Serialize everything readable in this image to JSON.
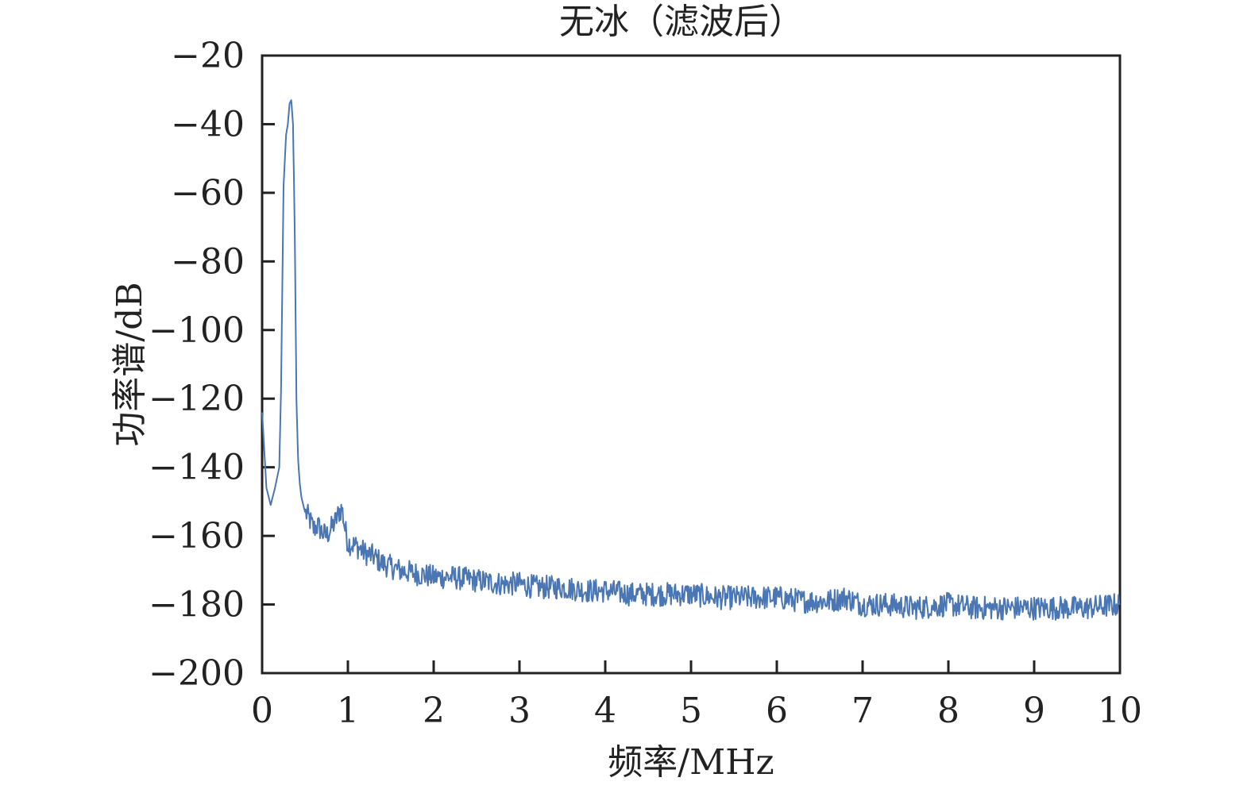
{
  "chart_data": {
    "type": "line",
    "title": "无冰（滤波后）",
    "xlabel": "频率/MHz",
    "ylabel": "功率谱/dB",
    "xlim": [
      0,
      10
    ],
    "ylim": [
      -200,
      -20
    ],
    "xticks": [
      "0",
      "1",
      "2",
      "3",
      "4",
      "5",
      "6",
      "7",
      "8",
      "9",
      "10"
    ],
    "yticks": [
      "−20",
      "−40",
      "−60",
      "−80",
      "−100",
      "−120",
      "−140",
      "−160",
      "−180",
      "−200"
    ],
    "grid": false,
    "line_color": "#4a76b4",
    "series": [
      {
        "x": [
          0,
          0.05,
          0.1,
          0.15,
          0.2,
          0.22,
          0.25,
          0.28,
          0.3,
          0.32,
          0.34,
          0.36,
          0.38,
          0.4,
          0.42,
          0.44,
          0.46,
          0.5,
          0.55,
          0.6,
          0.65,
          0.7,
          0.75,
          0.8,
          0.85,
          0.9,
          0.93,
          0.96,
          1.0,
          1.1,
          1.2,
          1.3,
          1.4,
          1.5,
          1.6,
          1.8,
          2.0,
          2.2,
          2.5,
          2.8,
          3.0,
          3.2,
          3.5,
          3.8,
          4.0,
          4.3,
          4.6,
          5.0,
          5.3,
          5.6,
          6.0,
          6.3,
          6.6,
          6.8,
          7.0,
          7.3,
          7.6,
          8.0,
          8.3,
          8.6,
          9.0,
          9.3,
          9.6,
          10.0
        ],
        "y": [
          -124,
          -146,
          -151,
          -146,
          -140,
          -118,
          -58,
          -43,
          -40,
          -34,
          -33,
          -40,
          -70,
          -120,
          -138,
          -145,
          -149,
          -153,
          -155,
          -158,
          -157,
          -159,
          -160,
          -158,
          -156,
          -153,
          -152,
          -157,
          -162,
          -163,
          -165,
          -166,
          -168,
          -169,
          -170,
          -171,
          -172,
          -172,
          -173,
          -174,
          -174,
          -175,
          -175,
          -176,
          -176,
          -177,
          -177,
          -177,
          -178,
          -178,
          -178,
          -179,
          -179,
          -178,
          -180,
          -180,
          -181,
          -180,
          -181,
          -181,
          -181,
          -181,
          -181,
          -180
        ]
      }
    ]
  }
}
